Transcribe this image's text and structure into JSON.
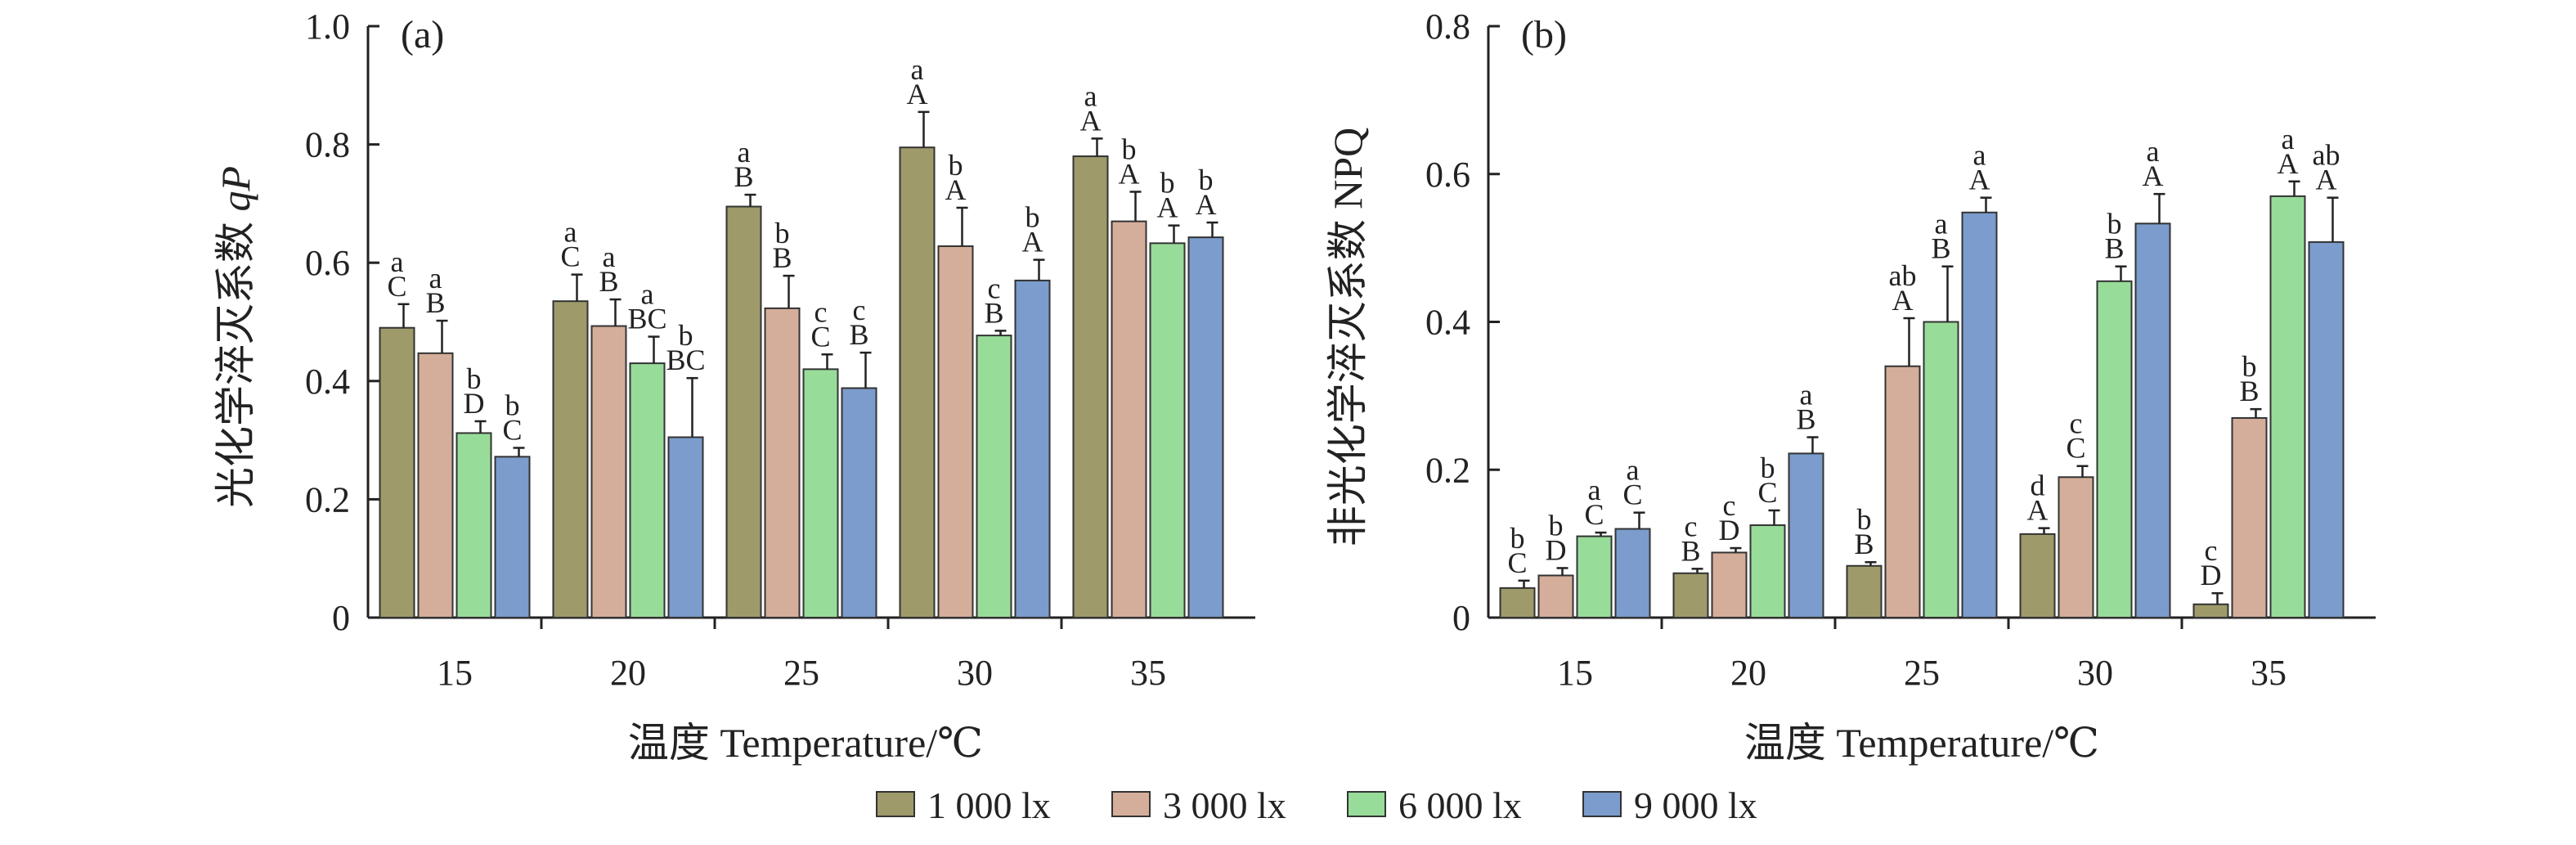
{
  "chart_data": [
    {
      "type": "bar",
      "panel": "(a)",
      "xlabel": "温度 Temperature/℃",
      "ylabel_prefix": "光化学淬灭系数 ",
      "ylabel_symbol": "qP",
      "ylim": [
        0,
        1.0
      ],
      "yticks": [
        "0",
        "0.2",
        "0.4",
        "0.6",
        "0.8",
        "1.0"
      ],
      "categories": [
        "15",
        "20",
        "25",
        "30",
        "35"
      ],
      "series": [
        {
          "name": "1 000 lx",
          "color": "#9e9a6a",
          "values": [
            0.49,
            0.535,
            0.695,
            0.795,
            0.78
          ],
          "errors": [
            0.04,
            0.045,
            0.02,
            0.06,
            0.03
          ],
          "sig_lower": [
            "a",
            "a",
            "a",
            "a",
            "a"
          ],
          "sig_upper": [
            "C",
            "C",
            "B",
            "A",
            "A"
          ]
        },
        {
          "name": "3 000 lx",
          "color": "#d4ae9a",
          "values": [
            0.447,
            0.493,
            0.523,
            0.628,
            0.67
          ],
          "errors": [
            0.055,
            0.045,
            0.055,
            0.065,
            0.05
          ],
          "sig_lower": [
            "a",
            "a",
            "b",
            "b",
            "b"
          ],
          "sig_upper": [
            "B",
            "B",
            "B",
            "A",
            "A"
          ]
        },
        {
          "name": "6 000 lx",
          "color": "#98dc9a",
          "values": [
            0.312,
            0.43,
            0.42,
            0.477,
            0.633
          ],
          "errors": [
            0.02,
            0.045,
            0.025,
            0.008,
            0.03
          ],
          "sig_lower": [
            "b",
            "a",
            "c",
            "c",
            "b"
          ],
          "sig_upper": [
            "D",
            "BC",
            "C",
            "B",
            "A"
          ]
        },
        {
          "name": "9 000 lx",
          "color": "#7b9ccc",
          "values": [
            0.272,
            0.305,
            0.388,
            0.57,
            0.643
          ],
          "errors": [
            0.015,
            0.1,
            0.06,
            0.035,
            0.025
          ],
          "sig_lower": [
            "b",
            "b",
            "c",
            "b",
            "b"
          ],
          "sig_upper": [
            "C",
            "BC",
            "B",
            "A",
            "A"
          ]
        }
      ]
    },
    {
      "type": "bar",
      "panel": "(b)",
      "xlabel": "温度 Temperature/℃",
      "ylabel": "非光化学淬灭系数 NPQ",
      "ylim": [
        0,
        0.8
      ],
      "yticks": [
        "0",
        "0.2",
        "0.4",
        "0.6",
        "0.8"
      ],
      "categories": [
        "15",
        "20",
        "25",
        "30",
        "35"
      ],
      "series": [
        {
          "name": "1 000 lx",
          "color": "#9e9a6a",
          "values": [
            0.04,
            0.06,
            0.07,
            0.113,
            0.018
          ],
          "errors": [
            0.01,
            0.006,
            0.005,
            0.008,
            0.015
          ],
          "sig_lower": [
            "b",
            "c",
            "b",
            "d",
            "c"
          ],
          "sig_upper": [
            "C",
            "B",
            "B",
            "A",
            "D"
          ]
        },
        {
          "name": "3 000 lx",
          "color": "#d4ae9a",
          "values": [
            0.057,
            0.088,
            0.34,
            0.19,
            0.27
          ],
          "errors": [
            0.01,
            0.006,
            0.065,
            0.015,
            0.012
          ],
          "sig_lower": [
            "b",
            "c",
            "ab",
            "c",
            "b"
          ],
          "sig_upper": [
            "D",
            "D",
            "A",
            "C",
            "B"
          ]
        },
        {
          "name": "6 000 lx",
          "color": "#98dc9a",
          "values": [
            0.11,
            0.125,
            0.4,
            0.455,
            0.57
          ],
          "errors": [
            0.005,
            0.02,
            0.075,
            0.02,
            0.02
          ],
          "sig_lower": [
            "a",
            "b",
            "a",
            "b",
            "a"
          ],
          "sig_upper": [
            "C",
            "C",
            "B",
            "B",
            "A"
          ]
        },
        {
          "name": "9 000 lx",
          "color": "#7b9ccc",
          "values": [
            0.12,
            0.222,
            0.548,
            0.533,
            0.508
          ],
          "errors": [
            0.022,
            0.022,
            0.02,
            0.04,
            0.06
          ],
          "sig_lower": [
            "a",
            "a",
            "a",
            "a",
            "ab"
          ],
          "sig_upper": [
            "C",
            "B",
            "A",
            "A",
            "A"
          ]
        }
      ]
    }
  ],
  "legend": [
    {
      "label": "1 000 lx",
      "color": "#9e9a6a"
    },
    {
      "label": "3 000 lx",
      "color": "#d4ae9a"
    },
    {
      "label": "6 000 lx",
      "color": "#98dc9a"
    },
    {
      "label": "9 000 lx",
      "color": "#7b9ccc"
    }
  ]
}
